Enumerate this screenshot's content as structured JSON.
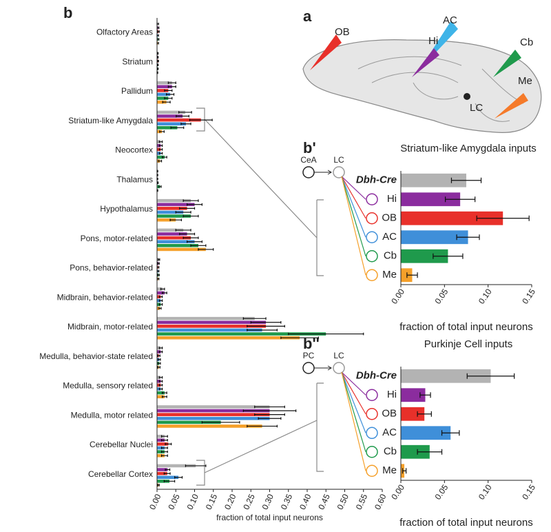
{
  "diagram": {
    "panel": "a",
    "labels": [
      "OB",
      "AC",
      "Hi",
      "Cb",
      "Me",
      "LC"
    ]
  },
  "chart_data": [
    {
      "type": "bar",
      "panel": "b",
      "categories": [
        "Olfactory Areas",
        "Striatum",
        "Pallidum",
        "Striatum-like Amygdala",
        "Neocortex",
        "Thalamus",
        "Hypothalamus",
        "Pons, motor-related",
        "Pons, behavior-related",
        "Midbrain, behavior-related",
        "Midbrain, motor-related",
        "Medulla, behavior-state related",
        "Medulla, sensory related",
        "Medulla, motor related",
        "Cerebellar Nuclei",
        "Cerebellar Cortex"
      ],
      "series": [
        {
          "color": "#b3b3b3",
          "values": [
            0.002,
            0.002,
            0.04,
            0.075,
            0.01,
            0.001,
            0.09,
            0.07,
            0.005,
            0.015,
            0.26,
            0.01,
            0.01,
            0.3,
            0.02,
            0.103
          ],
          "errors": [
            0.002,
            0.001,
            0.01,
            0.017,
            0.004,
            0.001,
            0.02,
            0.02,
            0.002,
            0.005,
            0.03,
            0.004,
            0.004,
            0.04,
            0.008,
            0.027
          ]
        },
        {
          "color": "#8b2c9e",
          "values": [
            0.003,
            0.002,
            0.04,
            0.068,
            0.01,
            0.001,
            0.1,
            0.08,
            0.004,
            0.02,
            0.29,
            0.01,
            0.01,
            0.3,
            0.02,
            0.028
          ],
          "errors": [
            0.002,
            0.001,
            0.01,
            0.017,
            0.004,
            0.001,
            0.02,
            0.02,
            0.002,
            0.006,
            0.04,
            0.004,
            0.004,
            0.07,
            0.008,
            0.006
          ]
        },
        {
          "color": "#e8302a",
          "values": [
            0.004,
            0.003,
            0.03,
            0.117,
            0.01,
            0.001,
            0.08,
            0.09,
            0.003,
            0.01,
            0.29,
            0.005,
            0.01,
            0.3,
            0.03,
            0.027
          ],
          "errors": [
            0.002,
            0.001,
            0.01,
            0.03,
            0.004,
            0.001,
            0.02,
            0.02,
            0.002,
            0.004,
            0.05,
            0.003,
            0.004,
            0.04,
            0.008,
            0.008
          ]
        },
        {
          "color": "#3f8fd9",
          "values": [
            0.002,
            0.002,
            0.035,
            0.077,
            0.01,
            0.002,
            0.07,
            0.1,
            0.003,
            0.01,
            0.28,
            0.006,
            0.01,
            0.3,
            0.02,
            0.057
          ],
          "errors": [
            0.002,
            0.001,
            0.01,
            0.013,
            0.004,
            0.001,
            0.02,
            0.02,
            0.002,
            0.004,
            0.04,
            0.003,
            0.004,
            0.03,
            0.008,
            0.01
          ]
        },
        {
          "color": "#1f9a4c",
          "values": [
            0.003,
            0.002,
            0.03,
            0.054,
            0.02,
            0.008,
            0.09,
            0.11,
            0.004,
            0.01,
            0.45,
            0.006,
            0.02,
            0.17,
            0.02,
            0.033
          ],
          "errors": [
            0.002,
            0.001,
            0.01,
            0.017,
            0.006,
            0.003,
            0.02,
            0.02,
            0.002,
            0.004,
            0.1,
            0.003,
            0.006,
            0.05,
            0.008,
            0.014
          ]
        },
        {
          "color": "#f5a02a",
          "values": [
            0.002,
            0.001,
            0.025,
            0.013,
            0.008,
            0.001,
            0.05,
            0.13,
            0.003,
            0.008,
            0.38,
            0.005,
            0.02,
            0.28,
            0.02,
            0.004
          ],
          "errors": [
            0.002,
            0.001,
            0.01,
            0.006,
            0.004,
            0.001,
            0.015,
            0.02,
            0.002,
            0.003,
            0.05,
            0.003,
            0.006,
            0.04,
            0.008,
            0.002
          ]
        }
      ],
      "xlabel": "fraction of total input neurons",
      "xlim": [
        0,
        0.6
      ],
      "xticks": [
        {
          "value": 0,
          "label": "0.00"
        },
        {
          "value": 0.05,
          "label": "0.05"
        },
        {
          "value": 0.1,
          "label": "0.10"
        },
        {
          "value": 0.15,
          "label": "0.15"
        },
        {
          "value": 0.2,
          "label": "0.20"
        },
        {
          "value": 0.25,
          "label": "0.25"
        },
        {
          "value": 0.3,
          "label": "0.30"
        },
        {
          "value": 0.35,
          "label": "0.35"
        },
        {
          "value": 0.4,
          "label": "0.40"
        },
        {
          "value": 0.45,
          "label": "0.45"
        },
        {
          "value": 0.5,
          "label": "0.50"
        },
        {
          "value": 0.55,
          "label": "0.55"
        },
        {
          "value": 0.6,
          "label": "0.60"
        }
      ]
    },
    {
      "type": "bar",
      "panel": "b'",
      "title": "Striatum-like Amygdala inputs",
      "schematic": [
        "CeA",
        "LC"
      ],
      "categories": [
        "Dbh-Cre",
        "Hi",
        "OB",
        "AC",
        "Cb",
        "Me"
      ],
      "values": [
        0.075,
        0.068,
        0.117,
        0.077,
        0.054,
        0.013
      ],
      "errors": [
        0.017,
        0.017,
        0.03,
        0.013,
        0.017,
        0.006
      ],
      "colors": [
        "#b3b3b3",
        "#8b2c9e",
        "#e8302a",
        "#3f8fd9",
        "#1f9a4c",
        "#f5a02a"
      ],
      "xlabel": "fraction of total input neurons",
      "xlim": [
        0,
        0.15
      ],
      "xticks": [
        {
          "value": 0,
          "label": "0.00"
        },
        {
          "value": 0.05,
          "label": "0.05"
        },
        {
          "value": 0.1,
          "label": "0.10"
        },
        {
          "value": 0.15,
          "label": "0.15"
        }
      ]
    },
    {
      "type": "bar",
      "panel": "b''",
      "title": "Purkinje Cell inputs",
      "schematic": [
        "PC",
        "LC"
      ],
      "categories": [
        "Dbh-Cre",
        "Hi",
        "OB",
        "AC",
        "Cb",
        "Me"
      ],
      "values": [
        0.103,
        0.028,
        0.027,
        0.057,
        0.033,
        0.004
      ],
      "errors": [
        0.027,
        0.006,
        0.008,
        0.01,
        0.014,
        0.002
      ],
      "colors": [
        "#b3b3b3",
        "#8b2c9e",
        "#e8302a",
        "#3f8fd9",
        "#1f9a4c",
        "#f5a02a"
      ],
      "xlabel": "fraction of total input neurons",
      "xlim": [
        0,
        0.15
      ],
      "xticks": [
        {
          "value": 0,
          "label": "0.00"
        },
        {
          "value": 0.05,
          "label": "0.05"
        },
        {
          "value": 0.1,
          "label": "0.10"
        },
        {
          "value": 0.15,
          "label": "0.15"
        }
      ]
    }
  ]
}
